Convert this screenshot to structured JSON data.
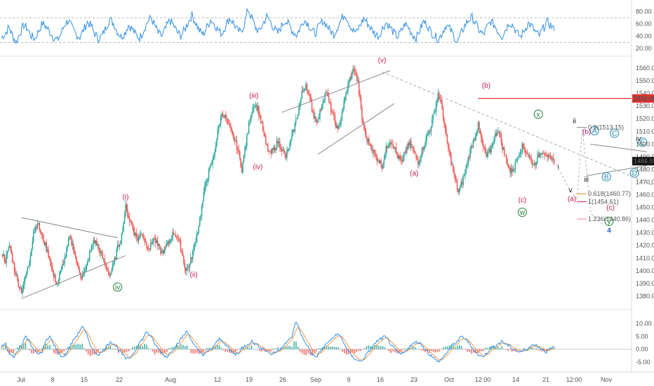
{
  "chart_data": [
    {
      "name": "rsi",
      "type": "line",
      "ylim": [
        10,
        92
      ],
      "yticks": [
        20,
        40,
        60,
        80
      ],
      "ytick_labels": [
        "20.00",
        "40.00",
        "60.00",
        "80.00"
      ],
      "levels": [
        30,
        70
      ],
      "color": "#2f8ee6",
      "samples": [
        38,
        44,
        55,
        41,
        30,
        46,
        58,
        52,
        40,
        36,
        49,
        61,
        55,
        47,
        38,
        33,
        45,
        60,
        66,
        52,
        43,
        39,
        50,
        63,
        57,
        44,
        36,
        41,
        55,
        68,
        61,
        48,
        39,
        45,
        58,
        52,
        42,
        37,
        49,
        62,
        70,
        58,
        45,
        40,
        53,
        66,
        59,
        47,
        41,
        50,
        63,
        74,
        62,
        49,
        43,
        55,
        67,
        60,
        50,
        44,
        57,
        69,
        63,
        51,
        46,
        59,
        84,
        70,
        54,
        47,
        60,
        72,
        64,
        52,
        45,
        57,
        66,
        58,
        48,
        42,
        54,
        67,
        61,
        50,
        44,
        56,
        65,
        59,
        49,
        43,
        55,
        68,
        76,
        62,
        50,
        46,
        58,
        69,
        61,
        52,
        44,
        40,
        53,
        62,
        55,
        46,
        39,
        48,
        60,
        54,
        43,
        37,
        50,
        64,
        58,
        47,
        40,
        35,
        46,
        58,
        52,
        42,
        30,
        44,
        57,
        66,
        71,
        60,
        48,
        42,
        55,
        64,
        58,
        47,
        40,
        52,
        63,
        57,
        45,
        39,
        50,
        61,
        56,
        46,
        41,
        53,
        63,
        58,
        49
      ]
    },
    {
      "name": "price",
      "type": "candlestick",
      "ylim": [
        1370,
        1565
      ],
      "yticks": [
        1380,
        1390,
        1400,
        1410,
        1420,
        1430,
        1440,
        1450,
        1460,
        1470,
        1480,
        1490,
        1500,
        1510,
        1520,
        1530,
        1540,
        1550,
        1560
      ],
      "ytick_labels": [
        "1380.00",
        "1390.00",
        "1400.00",
        "1410.00",
        "1420.00",
        "1430.00",
        "1440.00",
        "1450.00",
        "1460.00",
        "1470.00",
        "1480.00",
        "1490.00",
        "1500.00",
        "1510.00",
        "1520.00",
        "1530.00",
        "1540.00",
        "1550.00",
        "1560.00"
      ],
      "x_labels": [
        "Jul",
        "8",
        "15",
        "22",
        "Aug",
        "12",
        "19",
        "26",
        "Sep",
        "9",
        "16",
        "23",
        "Oct",
        "12:00",
        "14",
        "21",
        "12:00",
        "Nov"
      ],
      "last_price": "1486.55",
      "level_label": "1536.00",
      "level_value": 1536,
      "up_color": "#26a69a",
      "down_color": "#ef5350",
      "path": [
        1415,
        1408,
        1420,
        1405,
        1392,
        1384,
        1395,
        1408,
        1430,
        1438,
        1428,
        1420,
        1410,
        1396,
        1390,
        1402,
        1412,
        1426,
        1418,
        1403,
        1396,
        1400,
        1413,
        1424,
        1420,
        1412,
        1404,
        1396,
        1405,
        1418,
        1428,
        1450,
        1440,
        1432,
        1425,
        1430,
        1422,
        1418,
        1426,
        1420,
        1414,
        1418,
        1424,
        1430,
        1426,
        1415,
        1400,
        1405,
        1418,
        1432,
        1450,
        1470,
        1480,
        1490,
        1510,
        1525,
        1520,
        1512,
        1505,
        1496,
        1480,
        1500,
        1520,
        1532,
        1528,
        1515,
        1500,
        1492,
        1496,
        1502,
        1496,
        1490,
        1500,
        1512,
        1525,
        1540,
        1548,
        1535,
        1522,
        1518,
        1532,
        1542,
        1530,
        1520,
        1510,
        1525,
        1540,
        1552,
        1560,
        1548,
        1520,
        1505,
        1500,
        1492,
        1488,
        1483,
        1496,
        1503,
        1498,
        1490,
        1485,
        1497,
        1500,
        1493,
        1486,
        1495,
        1505,
        1512,
        1525,
        1540,
        1528,
        1505,
        1490,
        1475,
        1462,
        1470,
        1482,
        1495,
        1505,
        1515,
        1500,
        1490,
        1495,
        1505,
        1512,
        1498,
        1488,
        1478,
        1482,
        1492,
        1498,
        1494,
        1488,
        1484,
        1490,
        1495,
        1492,
        1487,
        1486.55
      ]
    },
    {
      "name": "macd",
      "type": "line",
      "ylim": [
        -7.5,
        12.5
      ],
      "yticks": [
        -5,
        0,
        5,
        10
      ],
      "ytick_labels": [
        "-5.00",
        "0.00",
        "5.00",
        "10.00"
      ],
      "macd_color": "#2f8ee6",
      "signal_color": "#ff9b45",
      "samples": [
        1,
        2,
        -2,
        -3,
        -1,
        2,
        5,
        3,
        0,
        -2,
        -1,
        3,
        5,
        2,
        -1,
        -3,
        -2,
        1,
        4,
        6,
        9,
        6,
        2,
        -1,
        -2,
        -1,
        1,
        3,
        2,
        0,
        -2,
        -4,
        -3,
        -1,
        2,
        4,
        7,
        5,
        2,
        0,
        -2,
        -3,
        -1,
        1,
        3,
        5,
        7,
        4,
        1,
        -1,
        -2,
        -1,
        0,
        2,
        4,
        3,
        1,
        -1,
        -2,
        -1,
        1,
        2,
        3,
        2,
        1,
        0,
        -1,
        -2,
        -1,
        0,
        2,
        3,
        5,
        11,
        7,
        3,
        1,
        -2,
        -3,
        -1,
        1,
        3,
        4,
        6,
        5,
        2,
        -1,
        -3,
        -4,
        -5,
        -3,
        -1,
        1,
        3,
        4,
        5,
        3,
        1,
        -1,
        -2,
        -1,
        1,
        2,
        3,
        2,
        0,
        -2,
        -3,
        -5,
        -4,
        -2,
        0,
        2,
        3,
        5,
        4,
        2,
        0,
        -2,
        -3,
        -2,
        0,
        1,
        2,
        3,
        2,
        1,
        0,
        -1,
        -1,
        0,
        1,
        2,
        1,
        0,
        -1,
        0,
        1
      ]
    }
  ],
  "wave_labels": [
    {
      "text": "(i)",
      "x_index": 31,
      "price": 1452,
      "pos": "above",
      "color": "#c2185b"
    },
    {
      "text": "(ii)",
      "x_index": 48,
      "price": 1403,
      "pos": "below",
      "color": "#c2185b"
    },
    {
      "text": "(iii)",
      "x_index": 63,
      "price": 1532,
      "pos": "above",
      "color": "#c2185b"
    },
    {
      "text": "(iv)",
      "x_index": 64,
      "price": 1488,
      "pos": "below",
      "color": "#c2185b"
    },
    {
      "text": "(v)",
      "x_index": 95,
      "price": 1560,
      "pos": "above",
      "color": "#c2185b"
    },
    {
      "text": "(a)",
      "x_index": 103,
      "price": 1483,
      "pos": "below",
      "color": "#c2185b"
    },
    {
      "text": "(b)",
      "x_index": 121,
      "price": 1540,
      "pos": "above",
      "color": "#c2185b"
    },
    {
      "text": "(c)",
      "x_index": 130,
      "price": 1462,
      "pos": "below",
      "color": "#c2185b"
    },
    {
      "text": "i",
      "x_index": 139,
      "price": 1488,
      "pos": "below",
      "color": "#111111"
    },
    {
      "text": "ii",
      "x_index": 143,
      "price": 1512,
      "pos": "above",
      "color": "#111111"
    },
    {
      "text": "iii",
      "x_index": 146,
      "price": 1478,
      "pos": "below",
      "color": "#111111"
    },
    {
      "text": "iv",
      "x_index": 159,
      "price": 1498,
      "pos": "above",
      "color": "#111111"
    }
  ],
  "circle_labels": [
    {
      "text": "iv",
      "x_index": 29,
      "price": 1393,
      "pos": "below",
      "color": "#1b7f3c"
    },
    {
      "text": "w",
      "x_index": 130,
      "price": 1452,
      "pos": "below",
      "color": "#1b7f3c"
    },
    {
      "text": "x",
      "x_index": 134,
      "price": 1515,
      "pos": "above",
      "color": "#1b7f3c"
    },
    {
      "text": "A",
      "x_index": 148,
      "price": 1502,
      "pos": "above",
      "color": "#1e88a8"
    },
    {
      "text": "B",
      "x_index": 151,
      "price": 1480,
      "pos": "below",
      "color": "#1e88a8"
    },
    {
      "text": "C",
      "x_index": 153,
      "price": 1500,
      "pos": "above",
      "color": "#1e88a8"
    },
    {
      "text": "D",
      "x_index": 158,
      "price": 1483,
      "pos": "below",
      "color": "#1e88a8"
    },
    {
      "text": "E",
      "x_index": 160,
      "price": 1493,
      "pos": "above",
      "color": "#1e88a8"
    }
  ],
  "projection_labels": [
    {
      "text": "0.9(1513.15)",
      "price": 1513.15,
      "color": "#888888"
    },
    {
      "text": "0.618(1460.77)",
      "price": 1460.77,
      "color": "#e6861c"
    },
    {
      "text": "1(1454.61)",
      "price": 1454.61,
      "color": "#c2185b"
    },
    {
      "text": "1.236(1440.86)",
      "price": 1440.86,
      "color": "#e57fa8"
    }
  ],
  "future_labels": [
    {
      "text": "v",
      "price": 1462,
      "color": "#111111"
    },
    {
      "text": "(a)",
      "price": 1455,
      "color": "#c2185b"
    },
    {
      "text": "(b)",
      "price": 1508,
      "color": "#c2185b"
    },
    {
      "text": "(c)",
      "price": 1448,
      "color": "#c2185b"
    },
    {
      "text": "y",
      "price": 1437,
      "color": "#1b7f3c"
    },
    {
      "text": "4",
      "price": 1430,
      "color": "#1e5fbf"
    }
  ]
}
